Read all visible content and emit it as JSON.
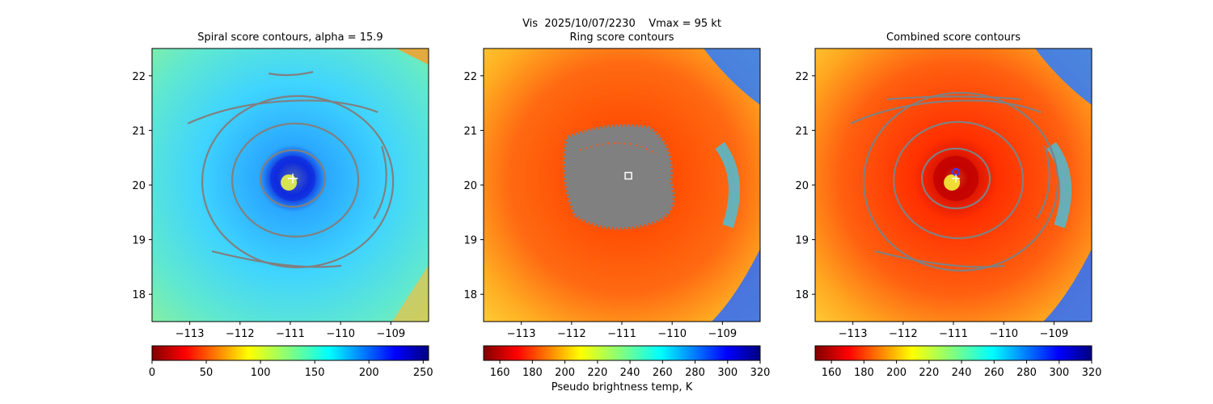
{
  "figure": {
    "suptitle": "Vis  2025/10/07/2230    Vmax = 95 kt"
  },
  "colors": {
    "contour": "#808080",
    "center_marker": "#ffffff",
    "circle_marker": "#3a3aff"
  },
  "chart_data": [
    {
      "type": "heatmap",
      "title": "Spiral score contours, alpha = 15.9",
      "xlabel": "",
      "ylabel": "",
      "x_range": [
        -113.75,
        -108.25
      ],
      "y_range": [
        17.5,
        22.5
      ],
      "xticks": [
        -113,
        -112,
        -111,
        -110,
        -109
      ],
      "xtick_labels": [
        "−113",
        "−112",
        "−111",
        "−110",
        "−109"
      ],
      "yticks": [
        18,
        19,
        20,
        21,
        22
      ],
      "ytick_labels": [
        "18",
        "19",
        "20",
        "21",
        "22"
      ],
      "colormap": "jet_r",
      "field": "Vis brightness (spiral score contours)",
      "center": [
        -110.95,
        20.12
      ],
      "colorbar": {
        "range": [
          0,
          255
        ],
        "ticks": [
          0,
          50,
          100,
          150,
          200,
          250
        ],
        "tick_labels": [
          "0",
          "50",
          "100",
          "150",
          "200",
          "250"
        ],
        "label": ""
      },
      "contours": "spiral score",
      "marker": "plus"
    },
    {
      "type": "heatmap",
      "title": "Ring score contours",
      "xlabel": "",
      "ylabel": "",
      "x_range": [
        -113.75,
        -108.25
      ],
      "y_range": [
        17.5,
        22.5
      ],
      "xticks": [
        -113,
        -112,
        -111,
        -110,
        -109
      ],
      "xtick_labels": [
        "−113",
        "−112",
        "−111",
        "−110",
        "−109"
      ],
      "yticks": [
        18,
        19,
        20,
        21,
        22
      ],
      "ytick_labels": [
        "18",
        "19",
        "20",
        "21",
        "22"
      ],
      "colormap": "jet_r",
      "field": "Pseudo brightness temp, K",
      "center": [
        -110.95,
        20.12
      ],
      "colorbar": {
        "range": [
          150,
          320
        ],
        "ticks": [
          160,
          180,
          200,
          220,
          240,
          260,
          280,
          300,
          320
        ],
        "tick_labels": [
          "160",
          "180",
          "200",
          "220",
          "240",
          "260",
          "280",
          "300",
          "320"
        ],
        "label": "Pseudo brightness temp, K"
      },
      "contours": "ring score (dense)",
      "marker": "square"
    },
    {
      "type": "heatmap",
      "title": "Combined score contours",
      "xlabel": "",
      "ylabel": "",
      "x_range": [
        -113.75,
        -108.25
      ],
      "y_range": [
        17.5,
        22.5
      ],
      "xticks": [
        -113,
        -112,
        -111,
        -110,
        -109
      ],
      "xtick_labels": [
        "−113",
        "−112",
        "−111",
        "−110",
        "−109"
      ],
      "yticks": [
        18,
        19,
        20,
        21,
        22
      ],
      "ytick_labels": [
        "18",
        "19",
        "20",
        "21",
        "22"
      ],
      "colormap": "jet_r",
      "field": "Pseudo brightness temp, K (combined score contours)",
      "center": [
        -110.95,
        20.12
      ],
      "colorbar": {
        "range": [
          150,
          320
        ],
        "ticks": [
          160,
          180,
          200,
          220,
          240,
          260,
          280,
          300,
          320
        ],
        "tick_labels": [
          "160",
          "180",
          "200",
          "220",
          "240",
          "260",
          "280",
          "300",
          "320"
        ],
        "label": ""
      },
      "contours": "combined score",
      "marker": "circle"
    }
  ]
}
